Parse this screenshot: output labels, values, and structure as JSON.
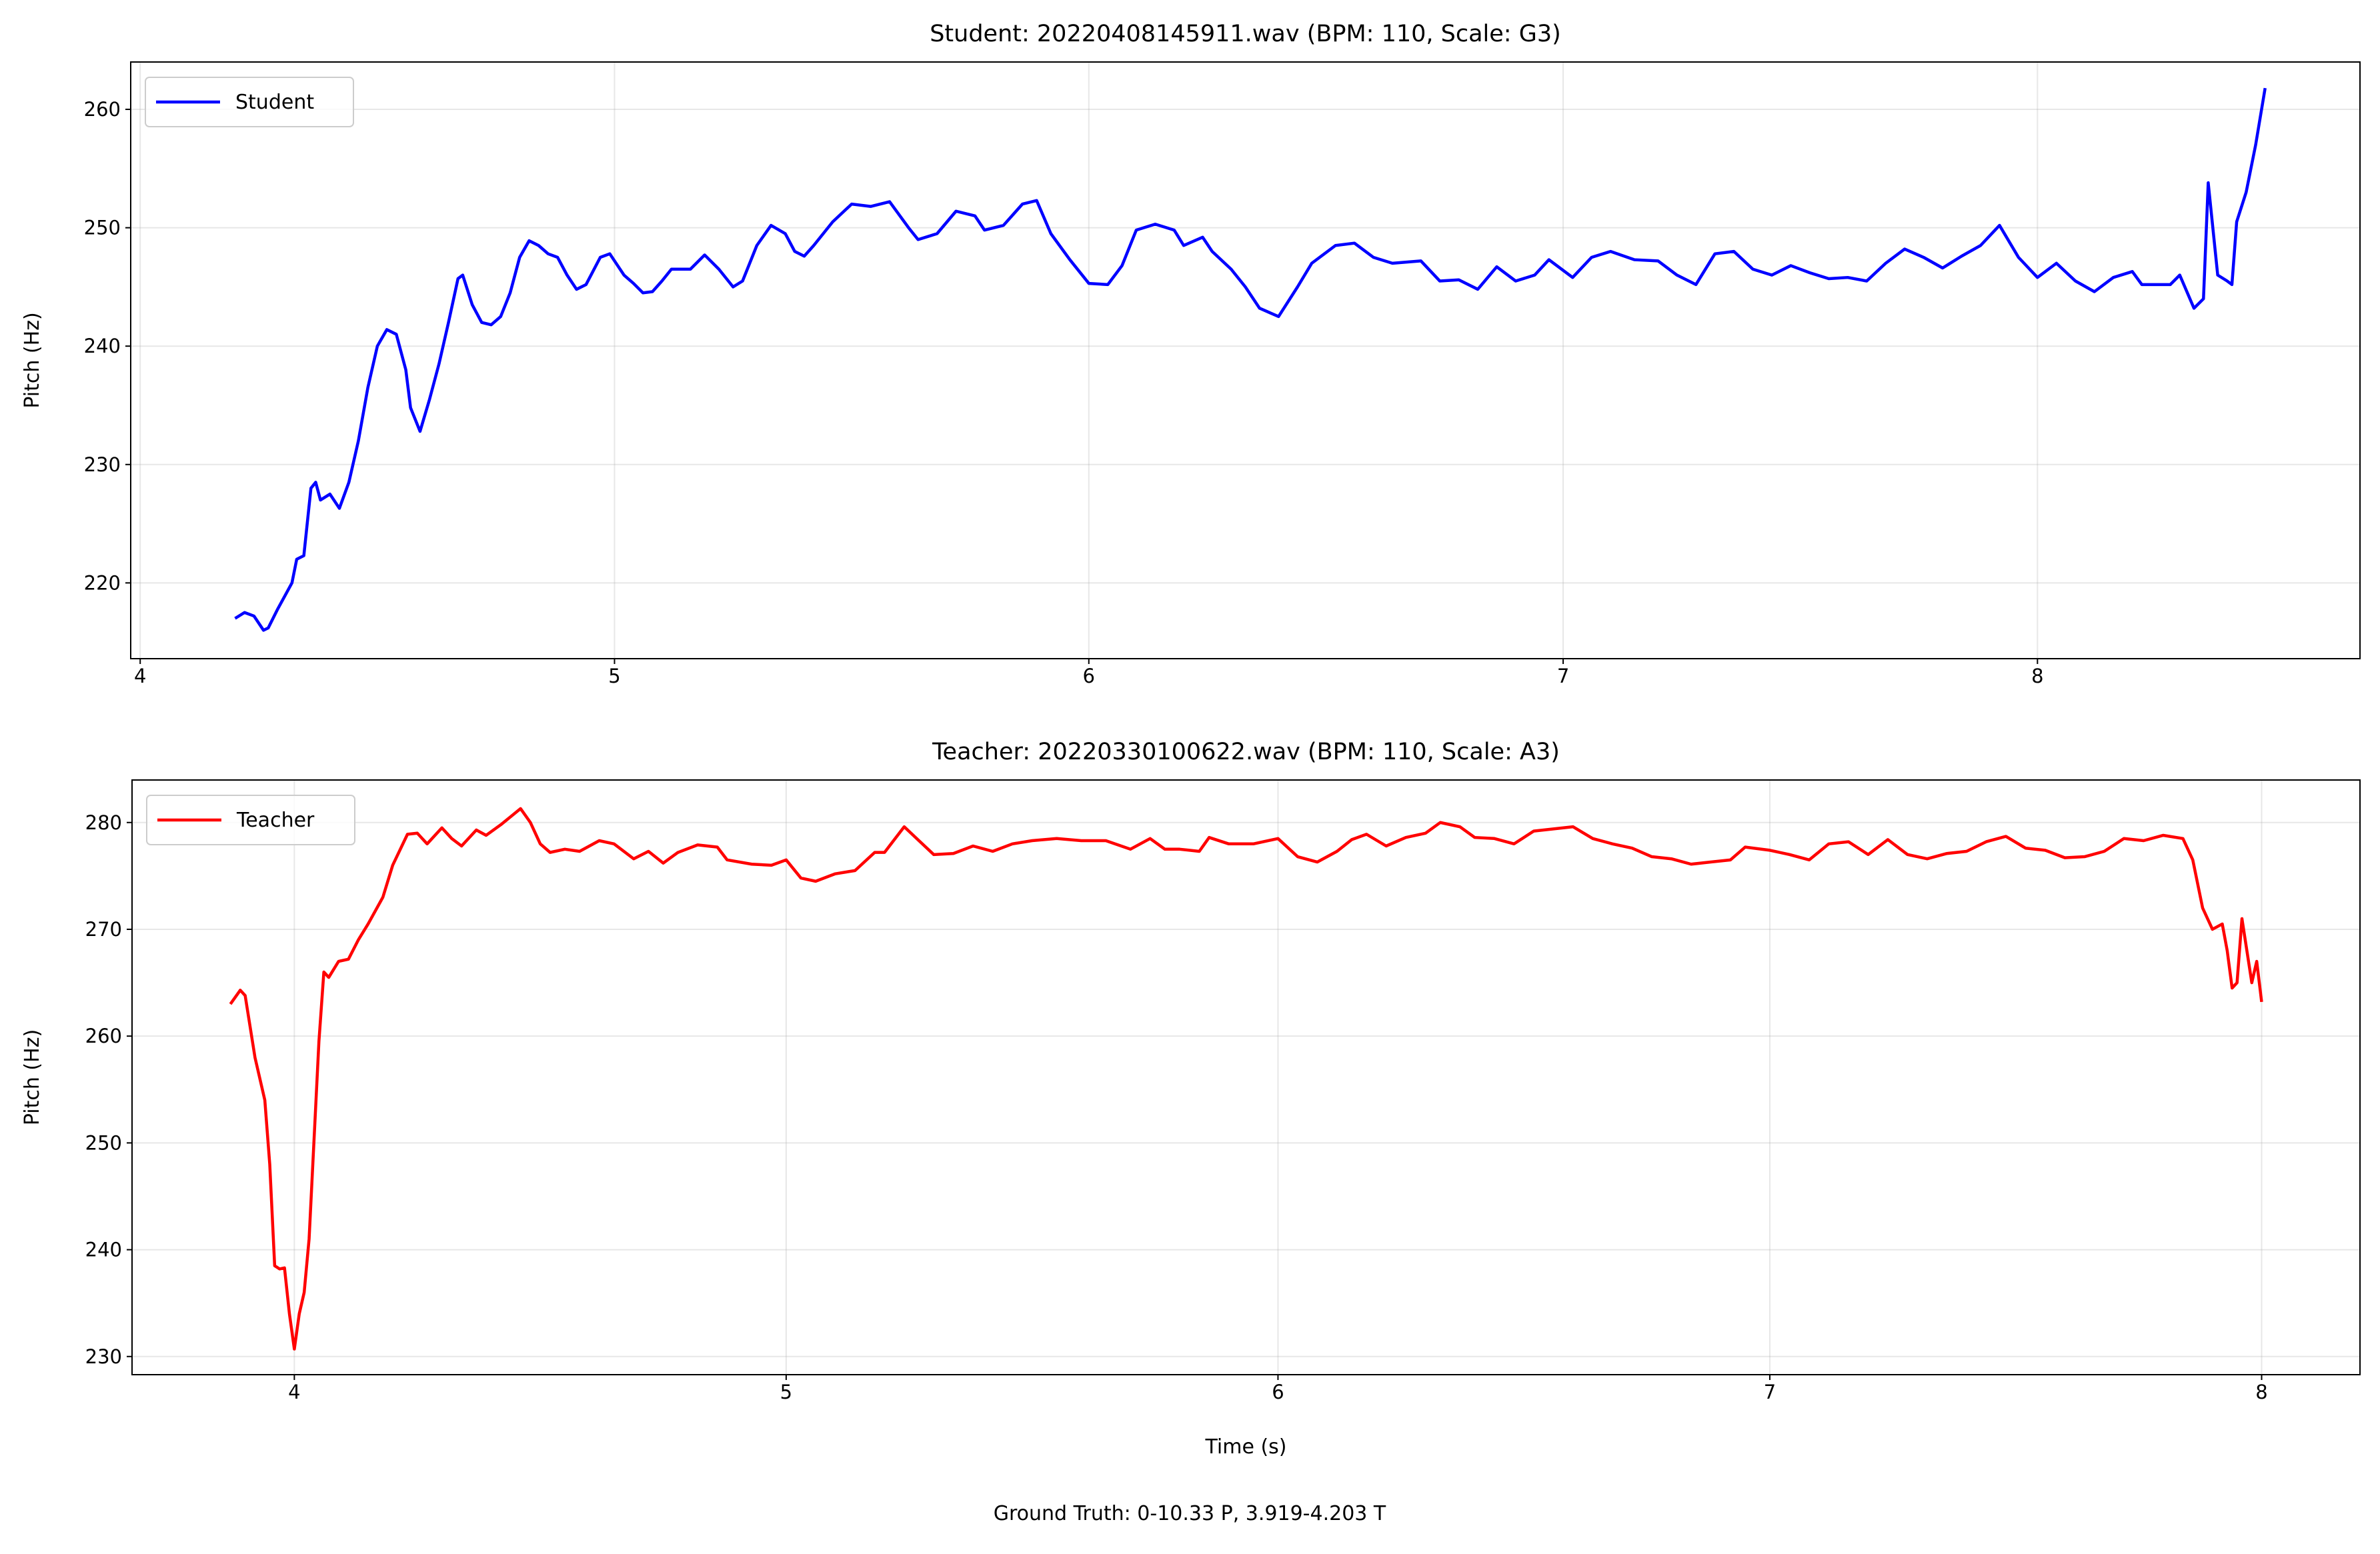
{
  "chart_data": [
    {
      "type": "line",
      "title": "Student: 20220408145911.wav (BPM: 110, Scale: G3)",
      "ylabel": "Pitch (Hz)",
      "x": [
        4.2,
        4.22,
        4.24,
        4.26,
        4.27,
        4.29,
        4.32,
        4.33,
        4.345,
        4.36,
        4.37,
        4.38,
        4.4,
        4.42,
        4.44,
        4.46,
        4.48,
        4.5,
        4.52,
        4.54,
        4.56,
        4.57,
        4.59,
        4.61,
        4.63,
        4.65,
        4.67,
        4.68,
        4.7,
        4.72,
        4.74,
        4.76,
        4.78,
        4.8,
        4.82,
        4.84,
        4.86,
        4.88,
        4.9,
        4.92,
        4.94,
        4.97,
        4.99,
        5.02,
        5.04,
        5.06,
        5.08,
        5.1,
        5.12,
        5.16,
        5.19,
        5.22,
        5.25,
        5.27,
        5.3,
        5.33,
        5.36,
        5.38,
        5.4,
        5.42,
        5.46,
        5.5,
        5.54,
        5.58,
        5.62,
        5.64,
        5.68,
        5.72,
        5.76,
        5.78,
        5.82,
        5.86,
        5.89,
        5.92,
        5.96,
        6.0,
        6.04,
        6.07,
        6.1,
        6.14,
        6.18,
        6.2,
        6.24,
        6.26,
        6.3,
        6.33,
        6.36,
        6.4,
        6.44,
        6.47,
        6.52,
        6.56,
        6.6,
        6.64,
        6.7,
        6.74,
        6.78,
        6.82,
        6.86,
        6.9,
        6.94,
        6.97,
        7.02,
        7.06,
        7.1,
        7.15,
        7.2,
        7.24,
        7.28,
        7.32,
        7.36,
        7.4,
        7.44,
        7.48,
        7.52,
        7.56,
        7.6,
        7.64,
        7.68,
        7.72,
        7.76,
        7.8,
        7.84,
        7.88,
        7.92,
        7.96,
        8.0,
        8.04,
        8.08,
        8.12,
        8.16,
        8.2,
        8.22,
        8.28,
        8.3,
        8.33,
        8.35,
        8.36,
        8.38,
        8.4,
        8.41,
        8.42,
        8.44,
        8.46,
        8.48
      ],
      "series": [
        {
          "name": "Student",
          "color": "#0000ff",
          "values": [
            217.0,
            217.5,
            217.2,
            216.0,
            216.2,
            217.8,
            220.0,
            222.0,
            222.3,
            228.0,
            228.5,
            227.0,
            227.5,
            226.3,
            228.5,
            232.0,
            236.5,
            240.0,
            241.4,
            241.0,
            238.0,
            234.8,
            232.8,
            235.5,
            238.5,
            242.0,
            245.7,
            246.0,
            243.5,
            242.0,
            241.8,
            242.5,
            244.5,
            247.5,
            248.9,
            248.5,
            247.8,
            247.5,
            246.0,
            244.8,
            245.2,
            247.5,
            247.8,
            246.0,
            245.3,
            244.5,
            244.6,
            245.5,
            246.5,
            246.5,
            247.7,
            246.5,
            245.0,
            245.5,
            248.5,
            250.2,
            249.5,
            248.0,
            247.6,
            248.5,
            250.5,
            252.0,
            251.8,
            252.2,
            250.0,
            249.0,
            249.5,
            251.4,
            251.0,
            249.8,
            250.2,
            252.0,
            252.3,
            249.5,
            247.3,
            245.3,
            245.2,
            246.8,
            249.8,
            250.3,
            249.8,
            248.5,
            249.2,
            248.0,
            246.5,
            245.0,
            243.2,
            242.5,
            245.0,
            247.0,
            248.5,
            248.7,
            247.5,
            247.0,
            247.2,
            245.5,
            245.6,
            244.8,
            246.7,
            245.5,
            246.0,
            247.3,
            245.8,
            247.5,
            248.0,
            247.3,
            247.2,
            246.0,
            245.2,
            247.8,
            248.0,
            246.5,
            246.0,
            246.8,
            246.2,
            245.7,
            245.8,
            245.5,
            247.0,
            248.2,
            247.5,
            246.6,
            247.6,
            248.5,
            250.2,
            247.5,
            245.8,
            247.0,
            245.5,
            244.6,
            245.8,
            246.3,
            245.2,
            245.2,
            246.0,
            243.2,
            244.0,
            253.8,
            246.0,
            245.5,
            245.2,
            250.5,
            253.0,
            257.0,
            261.8
          ]
        }
      ],
      "xlim": [
        3.98,
        8.68
      ],
      "xticks": [
        4,
        5,
        6,
        7,
        8
      ],
      "ylim": [
        213.6,
        264.0
      ],
      "yticks": [
        220,
        230,
        240,
        250,
        260
      ],
      "grid": true,
      "legend": "upper left"
    },
    {
      "type": "line",
      "title": "Teacher: 20220330100622.wav (BPM: 110, Scale: A3)",
      "ylabel": "Pitch (Hz)",
      "xlabel": "Time (s)",
      "x": [
        3.87,
        3.89,
        3.9,
        3.92,
        3.94,
        3.95,
        3.96,
        3.97,
        3.98,
        3.99,
        4.0,
        4.01,
        4.02,
        4.03,
        4.05,
        4.06,
        4.07,
        4.09,
        4.11,
        4.13,
        4.15,
        4.18,
        4.2,
        4.23,
        4.25,
        4.27,
        4.3,
        4.32,
        4.34,
        4.37,
        4.39,
        4.42,
        4.46,
        4.48,
        4.5,
        4.52,
        4.55,
        4.58,
        4.62,
        4.65,
        4.69,
        4.72,
        4.75,
        4.78,
        4.82,
        4.86,
        4.88,
        4.93,
        4.97,
        5.0,
        5.03,
        5.06,
        5.1,
        5.14,
        5.18,
        5.2,
        5.24,
        5.27,
        5.3,
        5.34,
        5.38,
        5.42,
        5.46,
        5.5,
        5.55,
        5.6,
        5.65,
        5.7,
        5.74,
        5.77,
        5.8,
        5.84,
        5.86,
        5.9,
        5.95,
        6.0,
        6.04,
        6.08,
        6.12,
        6.15,
        6.18,
        6.22,
        6.26,
        6.3,
        6.33,
        6.37,
        6.4,
        6.44,
        6.48,
        6.52,
        6.56,
        6.6,
        6.64,
        6.68,
        6.72,
        6.76,
        6.8,
        6.84,
        6.88,
        6.92,
        6.95,
        7.0,
        7.04,
        7.08,
        7.12,
        7.16,
        7.2,
        7.24,
        7.28,
        7.32,
        7.36,
        7.4,
        7.44,
        7.48,
        7.52,
        7.56,
        7.6,
        7.64,
        7.68,
        7.72,
        7.76,
        7.8,
        7.84,
        7.86,
        7.88,
        7.9,
        7.92,
        7.93,
        7.94,
        7.95,
        7.96,
        7.97,
        7.98,
        7.99,
        8.0
      ],
      "series": [
        {
          "name": "Teacher",
          "color": "#ff0000",
          "values": [
            263.0,
            264.3,
            263.8,
            258.0,
            254.0,
            248.0,
            238.5,
            238.2,
            238.3,
            234.0,
            230.7,
            234.0,
            236.0,
            241.0,
            259.5,
            266.0,
            265.5,
            267.0,
            267.2,
            269.0,
            270.5,
            273.0,
            276.0,
            278.9,
            279.0,
            278.0,
            279.5,
            278.5,
            277.8,
            279.3,
            278.8,
            279.8,
            281.3,
            280.0,
            278.0,
            277.2,
            277.5,
            277.3,
            278.3,
            278.0,
            276.6,
            277.3,
            276.2,
            277.2,
            277.9,
            277.7,
            276.5,
            276.1,
            276.0,
            276.5,
            274.8,
            274.5,
            275.2,
            275.5,
            277.2,
            277.2,
            279.6,
            278.3,
            277.0,
            277.1,
            277.8,
            277.3,
            278.0,
            278.3,
            278.5,
            278.3,
            278.3,
            277.5,
            278.5,
            277.5,
            277.5,
            277.3,
            278.6,
            278.0,
            278.0,
            278.5,
            276.8,
            276.3,
            277.3,
            278.4,
            278.9,
            277.8,
            278.6,
            279.0,
            280.0,
            279.6,
            278.6,
            278.5,
            278.0,
            279.2,
            279.4,
            279.6,
            278.5,
            278.0,
            277.6,
            276.8,
            276.6,
            276.1,
            276.3,
            276.5,
            277.7,
            277.4,
            277.0,
            276.5,
            278.0,
            278.2,
            277.0,
            278.4,
            277.0,
            276.6,
            277.1,
            277.3,
            278.2,
            278.7,
            277.6,
            277.4,
            276.7,
            276.8,
            277.3,
            278.5,
            278.3,
            278.8,
            278.5,
            276.5,
            272.0,
            270.0,
            270.5,
            268.0,
            264.5,
            265.0,
            271.0,
            268.0,
            265.0,
            267.0,
            263.2
          ]
        }
      ],
      "xlim": [
        3.67,
        8.2
      ],
      "xticks": [
        4,
        5,
        6,
        7,
        8
      ],
      "ylim": [
        228.3,
        283.98
      ],
      "yticks": [
        230,
        240,
        250,
        260,
        270,
        280
      ],
      "grid": true,
      "legend": "upper left"
    }
  ],
  "footer": "Ground Truth: 0-10.33 P, 3.919-4.203 T"
}
